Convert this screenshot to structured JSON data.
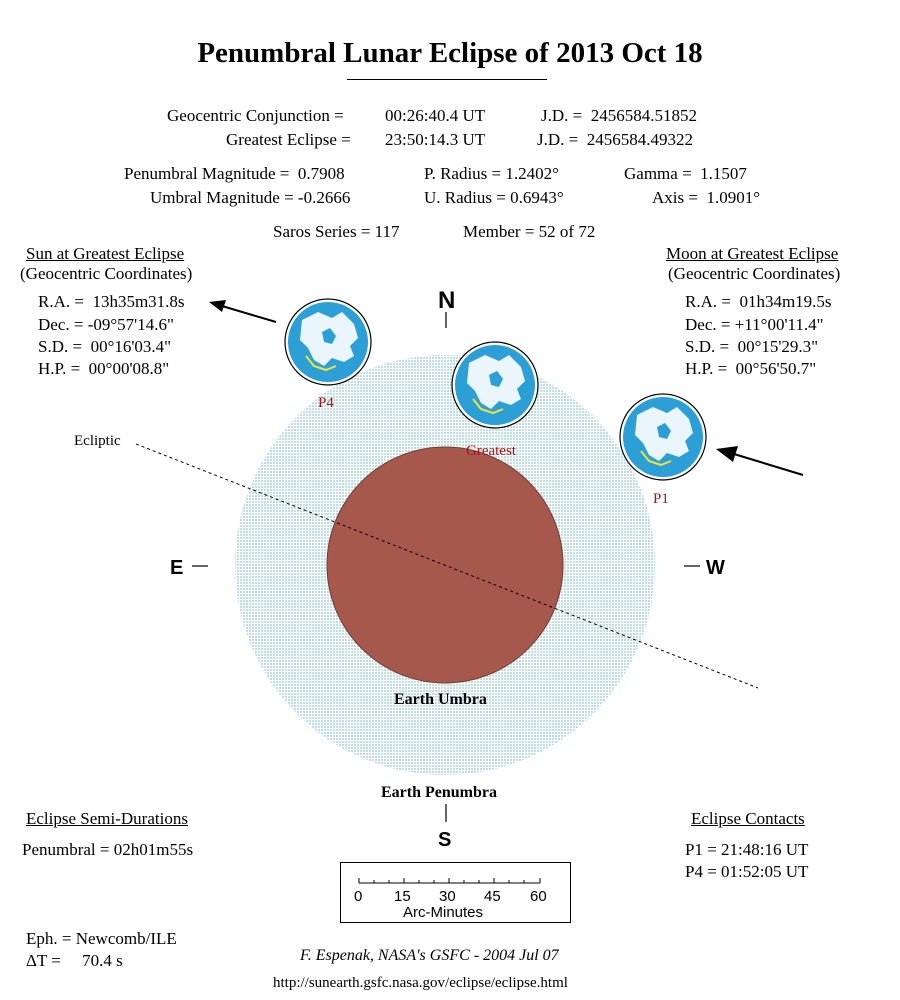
{
  "title": "Penumbral Lunar Eclipse of  2013 Oct 18",
  "info": {
    "conjunction_label": "Geocentric Conjunction =",
    "conjunction_time": "00:26:40.4 UT",
    "conjunction_jd": "J.D. =  2456584.51852",
    "greatest_label": "Greatest Eclipse =",
    "greatest_time": "23:50:14.3 UT",
    "greatest_jd": "J.D. =  2456584.49322",
    "penumbral_magnitude": "Penumbral Magnitude =  0.7908",
    "umbral_magnitude": "Umbral Magnitude = -0.2666",
    "p_radius": "P. Radius = 1.2402°",
    "u_radius": "U. Radius = 0.6943°",
    "gamma": "Gamma =  1.1507",
    "axis": "Axis =  1.0901°",
    "saros": "Saros Series = 117",
    "member": "Member = 52 of 72"
  },
  "sun": {
    "heading": "Sun at Greatest Eclipse",
    "subheading": "(Geocentric Coordinates)",
    "ra": "R.A. =  13h35m31.8s",
    "dec": "Dec. = -09°57'14.6\"",
    "sd": "S.D. =  00°16'03.4\"",
    "hp": "H.P. =  00°00'08.8\""
  },
  "moon": {
    "heading": "Moon at Greatest Eclipse",
    "subheading": "(Geocentric Coordinates)",
    "ra": "R.A. =  01h34m19.5s",
    "dec": "Dec. = +11°00'11.4\"",
    "sd": "S.D. =  00°15'29.3\"",
    "hp": "H.P. =  00°56'50.7\""
  },
  "diagram": {
    "north": "N",
    "south": "S",
    "east": "E",
    "west": "W",
    "ecliptic": "Ecliptic",
    "umbra_label": "Earth Umbra",
    "penumbra_label": "Earth Penumbra",
    "moon_p4": "P4",
    "moon_greatest": "Greatest",
    "moon_p1": "P1",
    "penumbra_color": "#bfe0e2",
    "umbra_color": "#a6584c",
    "moon_color": "#2c9fd6",
    "land_color": "#ffffff"
  },
  "semi_durations": {
    "heading": "Eclipse Semi-Durations",
    "penumbral": "Penumbral = 02h01m55s"
  },
  "contacts": {
    "heading": "Eclipse Contacts",
    "p1": "P1 = 21:48:16 UT",
    "p4": "P4 = 01:52:05 UT"
  },
  "scale": {
    "ticks": [
      "0",
      "15",
      "30",
      "45",
      "60"
    ],
    "label": "Arc-Minutes"
  },
  "ephemeris": {
    "eph": "Eph. = Newcomb/ILE",
    "delta_t": "ΔT =     70.4 s"
  },
  "credit": "F. Espenak, NASA's GSFC - 2004 Jul 07",
  "url": "http://sunearth.gsfc.nasa.gov/eclipse/eclipse.html"
}
